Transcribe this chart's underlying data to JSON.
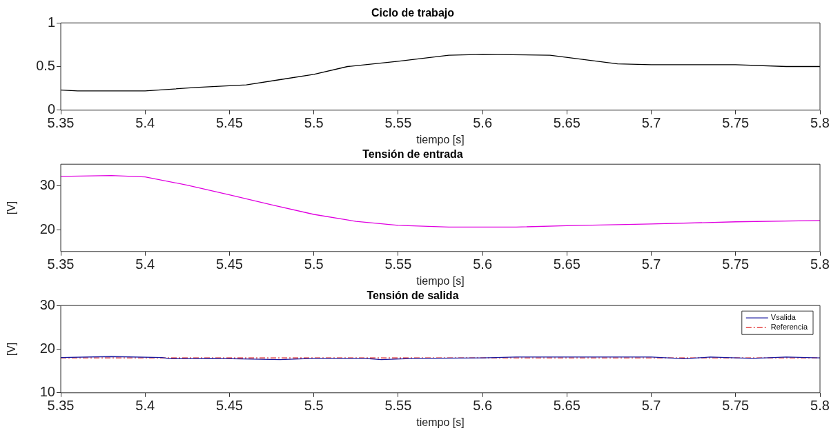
{
  "chart_data": [
    {
      "type": "line",
      "title": "Ciclo de trabajo",
      "xlabel": "tiempo [s]",
      "xlim": [
        5.35,
        5.8
      ],
      "xticks": [
        5.35,
        5.4,
        5.45,
        5.5,
        5.55,
        5.6,
        5.65,
        5.7,
        5.75,
        5.8
      ],
      "ylim": [
        0,
        1
      ],
      "yticks": [
        0,
        0.5,
        1
      ],
      "grid": false,
      "legend": false,
      "series": [
        {
          "color": "#000000",
          "line_style": "solid",
          "x": [
            5.35,
            5.36,
            5.4,
            5.43,
            5.46,
            5.48,
            5.5,
            5.52,
            5.55,
            5.58,
            5.6,
            5.64,
            5.68,
            5.7,
            5.75,
            5.78,
            5.8
          ],
          "values": [
            0.23,
            0.22,
            0.22,
            0.26,
            0.29,
            0.35,
            0.41,
            0.5,
            0.56,
            0.63,
            0.64,
            0.63,
            0.53,
            0.52,
            0.52,
            0.5,
            0.5
          ]
        }
      ]
    },
    {
      "type": "line",
      "title": "Tensión de entrada",
      "xlabel": "tiempo [s]",
      "ylabel": "[V]",
      "xlim": [
        5.35,
        5.8
      ],
      "xticks": [
        5.35,
        5.4,
        5.45,
        5.5,
        5.55,
        5.6,
        5.65,
        5.7,
        5.75,
        5.8
      ],
      "ylim": [
        15,
        35
      ],
      "yticks": [
        20,
        30
      ],
      "grid": false,
      "legend": false,
      "series": [
        {
          "color": "#e000e0",
          "line_style": "solid",
          "x": [
            5.35,
            5.38,
            5.4,
            5.425,
            5.45,
            5.475,
            5.5,
            5.525,
            5.55,
            5.58,
            5.62,
            5.65,
            5.7,
            5.75,
            5.8
          ],
          "values": [
            32.2,
            32.4,
            32.1,
            30.2,
            28,
            25.7,
            23.5,
            21.9,
            21,
            20.6,
            20.6,
            20.9,
            21.3,
            21.8,
            22.1
          ]
        }
      ]
    },
    {
      "type": "line",
      "title": "Tensión de salida",
      "xlabel": "tiempo [s]",
      "ylabel": "[V]",
      "xlim": [
        5.35,
        5.8
      ],
      "xticks": [
        5.35,
        5.4,
        5.45,
        5.5,
        5.55,
        5.6,
        5.65,
        5.7,
        5.75,
        5.8
      ],
      "ylim": [
        10,
        30
      ],
      "yticks": [
        10,
        20,
        30
      ],
      "grid": false,
      "legend": "top right",
      "series": [
        {
          "name": "Vsalida",
          "color": "#1a1aa0",
          "line_style": "solid",
          "x": [
            5.35,
            5.38,
            5.41,
            5.415,
            5.44,
            5.48,
            5.5,
            5.53,
            5.54,
            5.56,
            5.6,
            5.62,
            5.65,
            5.7,
            5.72,
            5.735,
            5.76,
            5.78,
            5.8
          ],
          "values": [
            18.1,
            18.3,
            18.1,
            17.8,
            17.9,
            17.6,
            17.9,
            17.9,
            17.6,
            17.9,
            18,
            18.2,
            18.2,
            18.2,
            17.8,
            18.2,
            17.9,
            18.2,
            18
          ]
        },
        {
          "name": "Referencia",
          "color": "#e02020",
          "line_style": "dashed",
          "x": [
            5.35,
            5.8
          ],
          "values": [
            18,
            18
          ]
        }
      ]
    }
  ]
}
